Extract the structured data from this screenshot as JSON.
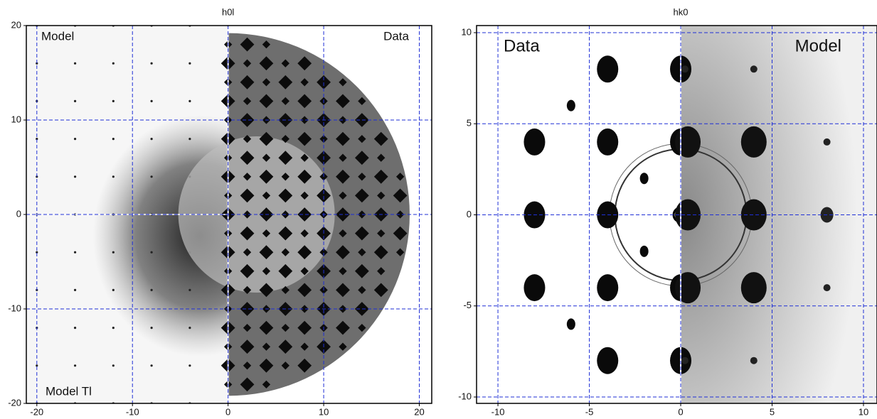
{
  "chart_data": [
    {
      "type": "image",
      "title": "h0l",
      "annotations": [
        "Model",
        "Data",
        "Model Tl"
      ],
      "xlim": [
        -21.1,
        21.3
      ],
      "ylim": [
        -20,
        20
      ],
      "xticks": [
        -20,
        -10,
        0,
        10,
        20
      ],
      "yticks": [
        -20,
        -10,
        0,
        10,
        20
      ],
      "grid": true,
      "grid_color": "#1f2fd6"
    },
    {
      "type": "image",
      "title": "hk0",
      "annotations": [
        "Data",
        "Model"
      ],
      "xlim": [
        -11.17,
        10.74
      ],
      "ylim": [
        -10.35,
        10.39
      ],
      "xticks": [
        -10,
        -5,
        0,
        5,
        10
      ],
      "yticks": [
        -10,
        -5,
        0,
        5,
        10
      ],
      "grid": true,
      "grid_color": "#1f2fd6"
    }
  ]
}
